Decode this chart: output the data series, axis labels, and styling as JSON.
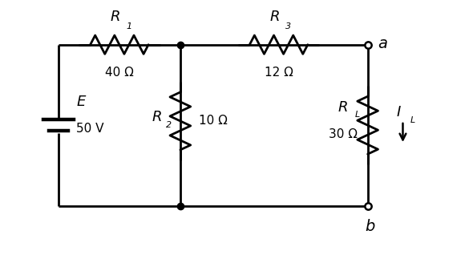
{
  "bg_color": "#ffffff",
  "line_color": "#000000",
  "line_width": 2.0,
  "fig_width": 5.9,
  "fig_height": 3.23,
  "labels": {
    "R1": "R",
    "R1_sub": "1",
    "R1_val": "40 Ω",
    "R2": "R",
    "R2_sub": "2",
    "R2_val": "10 Ω",
    "R3": "R",
    "R3_sub": "3",
    "R3_val": "12 Ω",
    "RL": "R",
    "RL_sub": "L",
    "RL_val": "30 Ω",
    "E": "E",
    "E_val": "50 V",
    "node_a": "a",
    "node_b": "b",
    "IL": "I",
    "IL_sub": "L"
  }
}
